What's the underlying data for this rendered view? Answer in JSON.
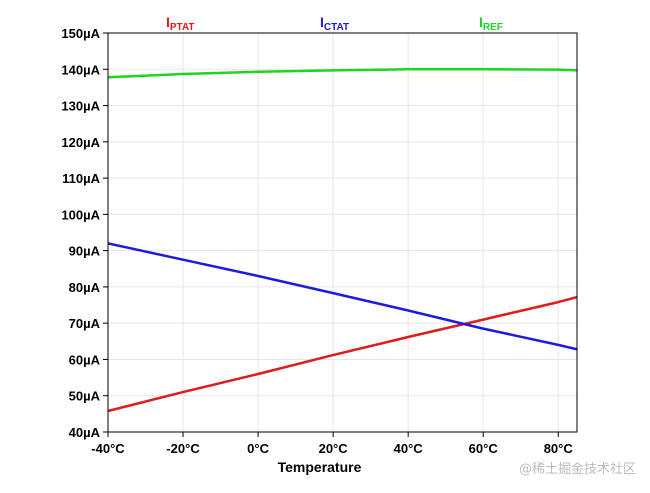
{
  "chart_data": {
    "type": "line",
    "xlabel": "Temperature",
    "ylabel": "",
    "xlim": [
      -40,
      85
    ],
    "ylim": [
      40,
      150
    ],
    "x_ticks": [
      -40,
      -20,
      0,
      20,
      40,
      60,
      80
    ],
    "x_tick_labels": [
      "-40°C",
      "-20°C",
      "0°C",
      "20°C",
      "40°C",
      "60°C",
      "80°C"
    ],
    "y_ticks": [
      40,
      50,
      60,
      70,
      80,
      90,
      100,
      110,
      120,
      130,
      140,
      150
    ],
    "y_tick_labels": [
      "40µA",
      "50µA",
      "60µA",
      "70µA",
      "80µA",
      "90µA",
      "100µA",
      "110µA",
      "120µA",
      "130µA",
      "140µA",
      "150µA"
    ],
    "grid": true,
    "series": [
      {
        "name": "IPTAT",
        "label_main": "I",
        "label_sub": "PTAT",
        "color": "#e01b1b",
        "x": [
          -40,
          -20,
          0,
          20,
          40,
          60,
          80,
          85
        ],
        "values": [
          45.8,
          51,
          56,
          61.2,
          66.2,
          71,
          75.8,
          77.2
        ]
      },
      {
        "name": "ICTAT",
        "label_main": "I",
        "label_sub": "CTAT",
        "color": "#1c1cdc",
        "x": [
          -40,
          -20,
          0,
          20,
          40,
          60,
          80,
          85
        ],
        "values": [
          92,
          87.5,
          83,
          78.3,
          73.5,
          68.5,
          64,
          62.8
        ]
      },
      {
        "name": "IREF",
        "label_main": "I",
        "label_sub": "REF",
        "color": "#22d422",
        "x": [
          -40,
          -20,
          0,
          20,
          40,
          60,
          80,
          85
        ],
        "values": [
          137.8,
          138.7,
          139.3,
          139.7,
          140,
          140,
          139.9,
          139.7
        ]
      }
    ]
  },
  "watermark": "@稀土掘金技术社区"
}
